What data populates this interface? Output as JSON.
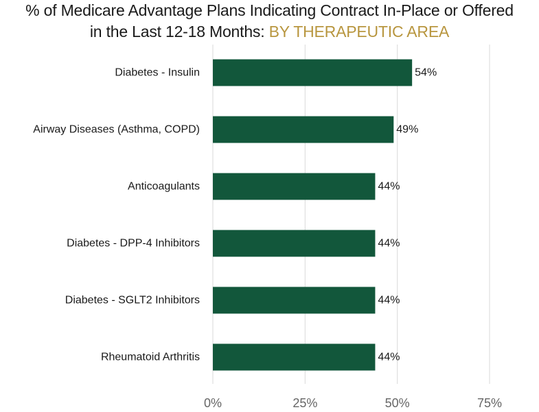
{
  "title": {
    "line1": "% of Medicare Advantage Plans Indicating Contract In-Place or Offered",
    "line2_prefix": "in the Last 12-18 Months: ",
    "line2_highlight": "BY THERAPEUTIC AREA"
  },
  "colors": {
    "bar": "#12573b",
    "highlight": "#b8963f",
    "grid": "#d9d9d9",
    "tick_text": "#666666",
    "label_text": "#1a1a1a"
  },
  "chart_data": {
    "type": "bar",
    "orientation": "horizontal",
    "categories": [
      "Diabetes - Insulin",
      "Airway Diseases (Asthma, COPD)",
      "Anticoagulants",
      "Diabetes - DPP-4 Inhibitors",
      "Diabetes - SGLT2 Inhibitors",
      "Rheumatoid Arthritis"
    ],
    "values": [
      54,
      49,
      44,
      44,
      44,
      44
    ],
    "value_labels": [
      "54%",
      "49%",
      "44%",
      "44%",
      "44%",
      "44%"
    ],
    "xlim": [
      0,
      75
    ],
    "xticks": [
      0,
      25,
      50,
      75
    ],
    "xtick_labels": [
      "0%",
      "25%",
      "50%",
      "75%"
    ],
    "grid": true,
    "legend": "none"
  }
}
